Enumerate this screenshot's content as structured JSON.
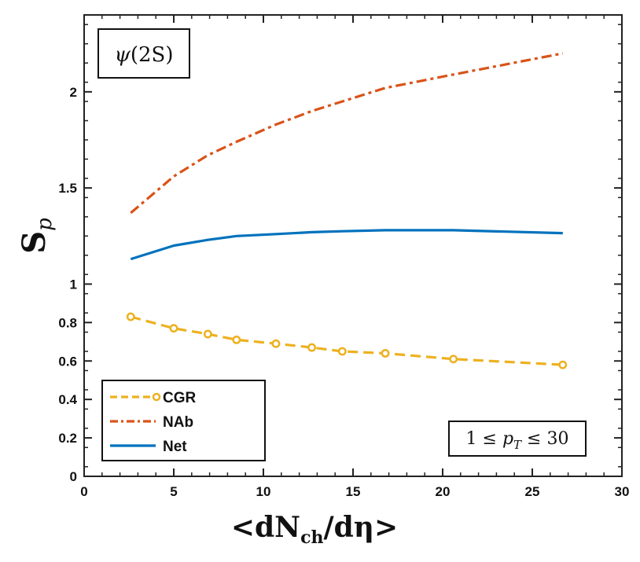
{
  "chart_data": {
    "type": "line",
    "xlabel": "<dN_ch/dη>",
    "ylabel": "S_p",
    "xlim": [
      0,
      30
    ],
    "ylim": [
      0,
      2.4
    ],
    "x_ticks": [
      0,
      5,
      10,
      15,
      20,
      25,
      30
    ],
    "y_ticks": [
      0,
      0.2,
      0.4,
      0.6,
      0.8,
      1,
      1.5,
      2
    ],
    "y_tick_labels": [
      "0",
      "0.2",
      "0.4",
      "0.6",
      "0.8",
      "1",
      "1.5",
      "2"
    ],
    "particle_label": "ψ(2S)",
    "pt_range_label": "1 ≤ p_T ≤ 30",
    "legend_position": "bottom-left",
    "series": [
      {
        "name": "CGR",
        "color": "#EDB120",
        "style": "dashed-circle",
        "x": [
          2.6,
          5.0,
          6.9,
          8.5,
          10.7,
          12.7,
          14.4,
          16.8,
          20.6,
          26.7
        ],
        "y": [
          0.83,
          0.77,
          0.74,
          0.71,
          0.69,
          0.67,
          0.65,
          0.64,
          0.61,
          0.58
        ]
      },
      {
        "name": "NAb",
        "color": "#D95319",
        "style": "dashdot",
        "x": [
          2.6,
          5.0,
          6.9,
          8.5,
          10.7,
          12.7,
          14.4,
          16.8,
          20.6,
          26.7
        ],
        "y": [
          1.37,
          1.56,
          1.67,
          1.74,
          1.83,
          1.9,
          1.95,
          2.02,
          2.09,
          2.2
        ]
      },
      {
        "name": "Net",
        "color": "#0072BD",
        "style": "solid",
        "x": [
          2.6,
          5.0,
          6.9,
          8.5,
          10.7,
          12.7,
          14.4,
          16.8,
          20.6,
          26.7
        ],
        "y": [
          1.13,
          1.2,
          1.23,
          1.25,
          1.26,
          1.27,
          1.275,
          1.28,
          1.28,
          1.265
        ]
      }
    ]
  }
}
